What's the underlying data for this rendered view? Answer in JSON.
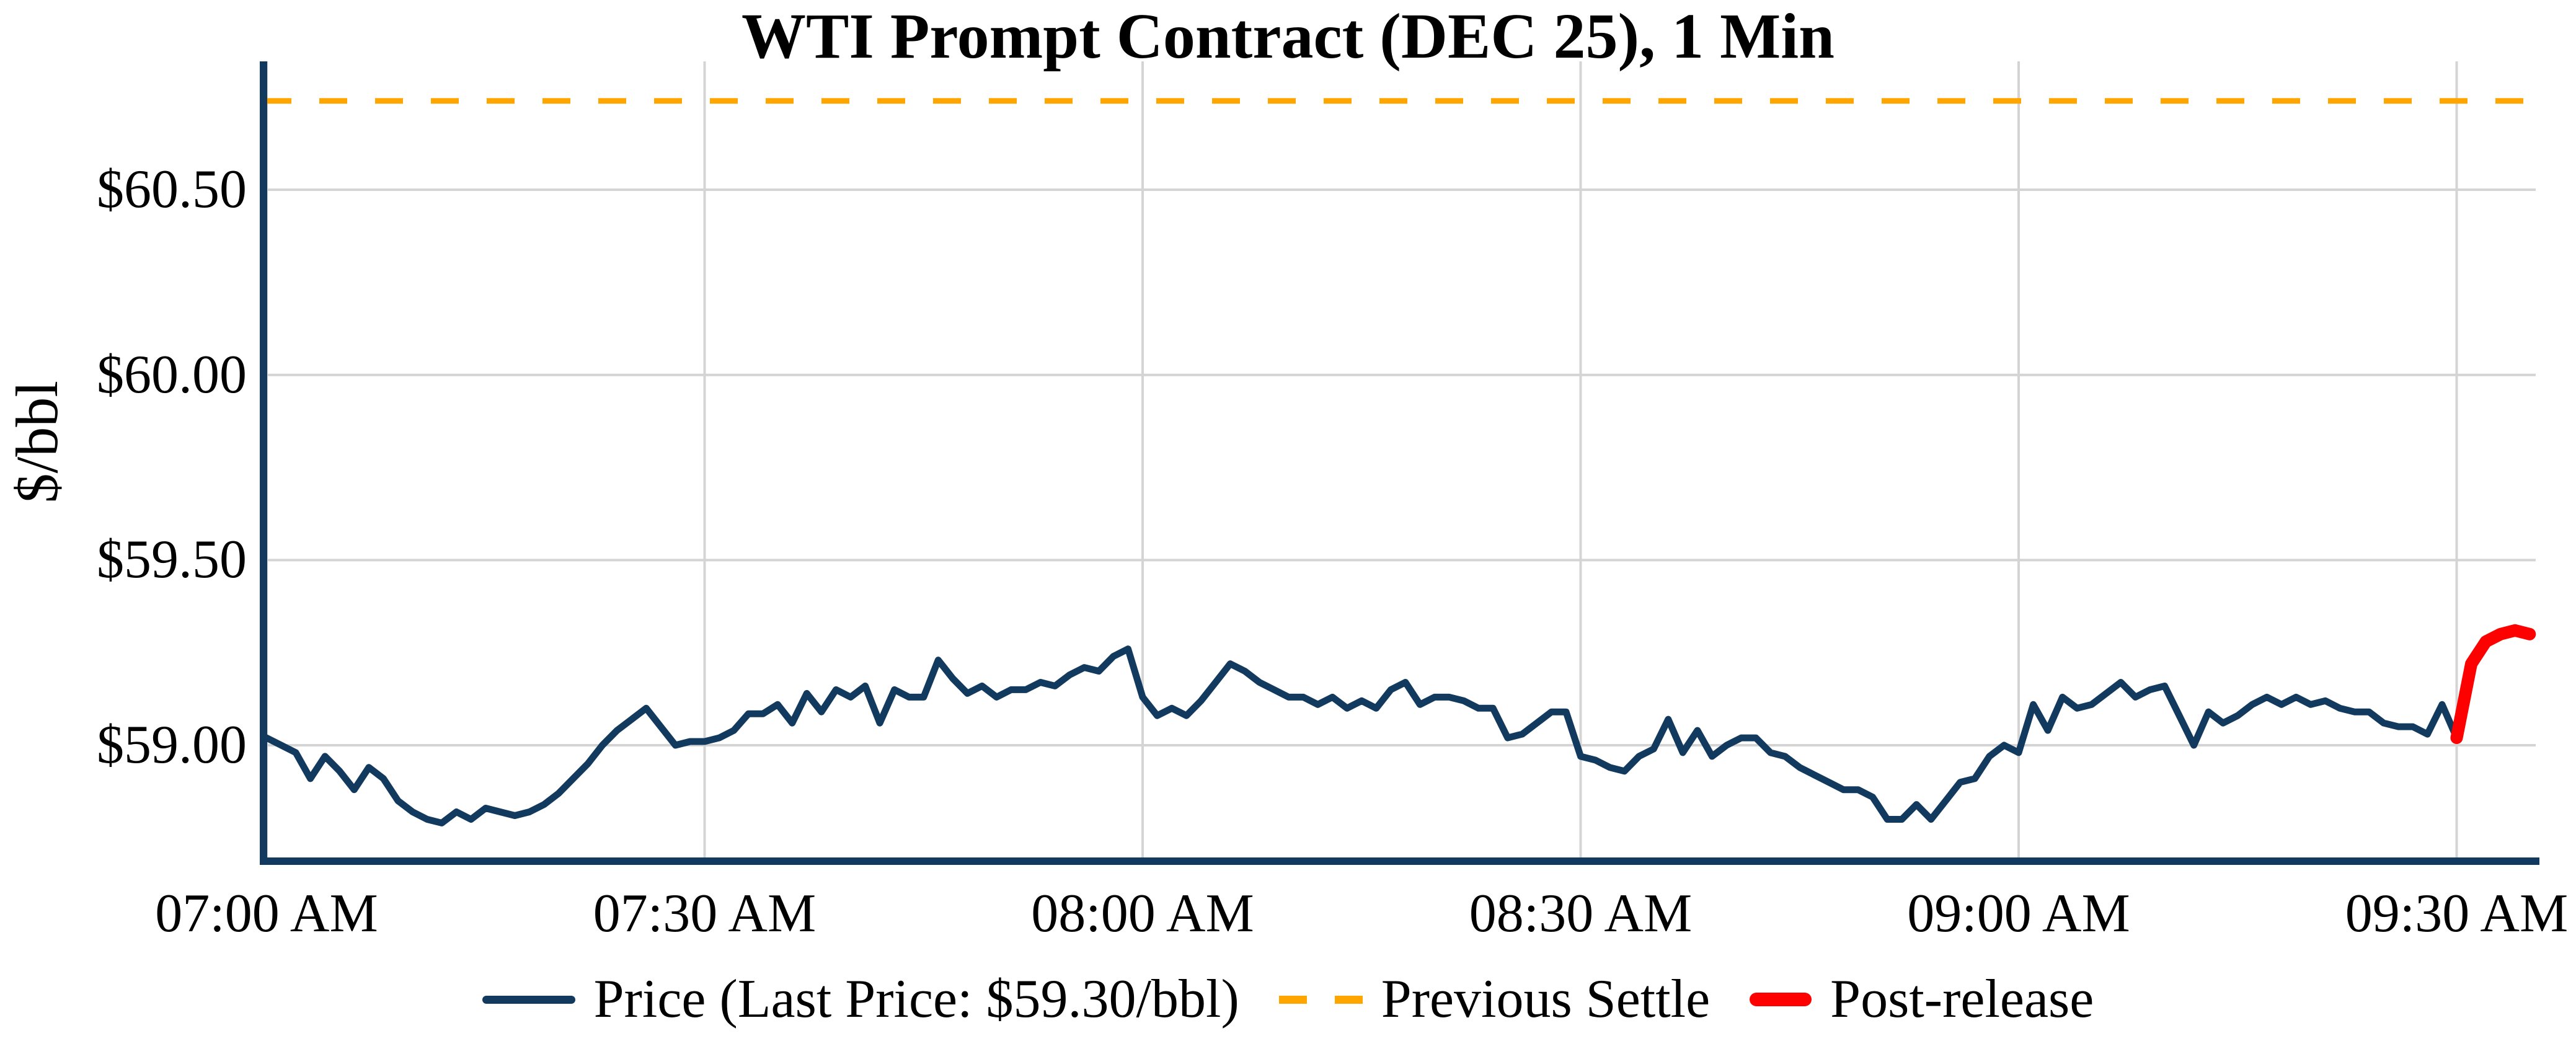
{
  "title": "WTI Prompt Contract (DEC 25), 1 Min",
  "y_axis": {
    "label": "$/bbl",
    "ticks": [
      "$60.50",
      "$60.00",
      "$59.50",
      "$59.00"
    ],
    "tick_values": [
      60.5,
      60.0,
      59.5,
      59.0
    ]
  },
  "x_axis": {
    "ticks": [
      "07:00 AM",
      "07:30 AM",
      "08:00 AM",
      "08:30 AM",
      "09:00 AM",
      "09:30 AM"
    ],
    "tick_minutes": [
      0,
      30,
      60,
      90,
      120,
      150
    ]
  },
  "legend": {
    "price_label": "Price (Last Price: $59.30/bbl)",
    "settle_label": "Previous Settle",
    "post_label": "Post-release"
  },
  "colors": {
    "price_line": "#123a5f",
    "settle_line": "#ffa500",
    "post_line": "#ff0000",
    "grid": "#d4d4d4",
    "spine": "#123a5f",
    "background": "#ffffff",
    "text": "#000000"
  },
  "chart_data": {
    "type": "line",
    "title": "WTI Prompt Contract (DEC 25), 1 Min",
    "xlabel": "",
    "ylabel": "$/bbl",
    "x_unit": "minutes since 07:00 AM, 1-minute bars",
    "ylim": [
      58.69,
      60.85
    ],
    "xlim_minutes": [
      -0.5,
      155.5
    ],
    "grid": true,
    "legend_position": "bottom-center",
    "previous_settle": 60.74,
    "last_price": 59.3,
    "series": [
      {
        "name": "Price (Last Price: $59.30/bbl)",
        "style": "solid",
        "x_start": 0,
        "x_step": 1,
        "y": [
          59.02,
          59.0,
          58.98,
          58.91,
          58.97,
          58.93,
          58.88,
          58.94,
          58.91,
          58.85,
          58.82,
          58.8,
          58.79,
          58.82,
          58.8,
          58.83,
          58.82,
          58.81,
          58.82,
          58.84,
          58.87,
          58.91,
          58.95,
          59.0,
          59.04,
          59.07,
          59.1,
          59.05,
          59.0,
          59.01,
          59.01,
          59.02,
          59.04,
          59.085,
          59.085,
          59.11,
          59.06,
          59.14,
          59.09,
          59.15,
          59.13,
          59.16,
          59.06,
          59.15,
          59.13,
          59.13,
          59.23,
          59.18,
          59.14,
          59.16,
          59.13,
          59.15,
          59.15,
          59.17,
          59.16,
          59.19,
          59.21,
          59.2,
          59.24,
          59.26,
          59.13,
          59.08,
          59.1,
          59.08,
          59.12,
          59.17,
          59.22,
          59.2,
          59.17,
          59.15,
          59.13,
          59.13,
          59.11,
          59.13,
          59.1,
          59.12,
          59.1,
          59.15,
          59.17,
          59.11,
          59.13,
          59.13,
          59.12,
          59.1,
          59.1,
          59.02,
          59.03,
          59.06,
          59.09,
          59.09,
          58.97,
          58.96,
          58.94,
          58.93,
          58.97,
          58.99,
          59.07,
          58.98,
          59.04,
          58.97,
          59.0,
          59.02,
          59.02,
          58.98,
          58.97,
          58.94,
          58.92,
          58.9,
          58.88,
          58.88,
          58.86,
          58.8,
          58.8,
          58.84,
          58.8,
          58.85,
          58.9,
          58.91,
          58.97,
          59.0,
          58.98,
          59.11,
          59.04,
          59.13,
          59.1,
          59.11,
          59.14,
          59.17,
          59.13,
          59.15,
          59.16,
          59.08,
          59.0,
          59.09,
          59.06,
          59.08,
          59.11,
          59.13,
          59.11,
          59.13,
          59.11,
          59.12,
          59.1,
          59.09,
          59.09,
          59.06,
          59.05,
          59.05,
          59.03,
          59.11,
          59.02
        ]
      },
      {
        "name": "Post-release",
        "style": "solid-thick",
        "x_start": 150,
        "x_step": 1,
        "y": [
          59.02,
          59.22,
          59.28,
          59.3,
          59.31,
          59.3
        ]
      },
      {
        "name": "Previous Settle",
        "style": "dashed",
        "value": 60.74
      }
    ]
  }
}
